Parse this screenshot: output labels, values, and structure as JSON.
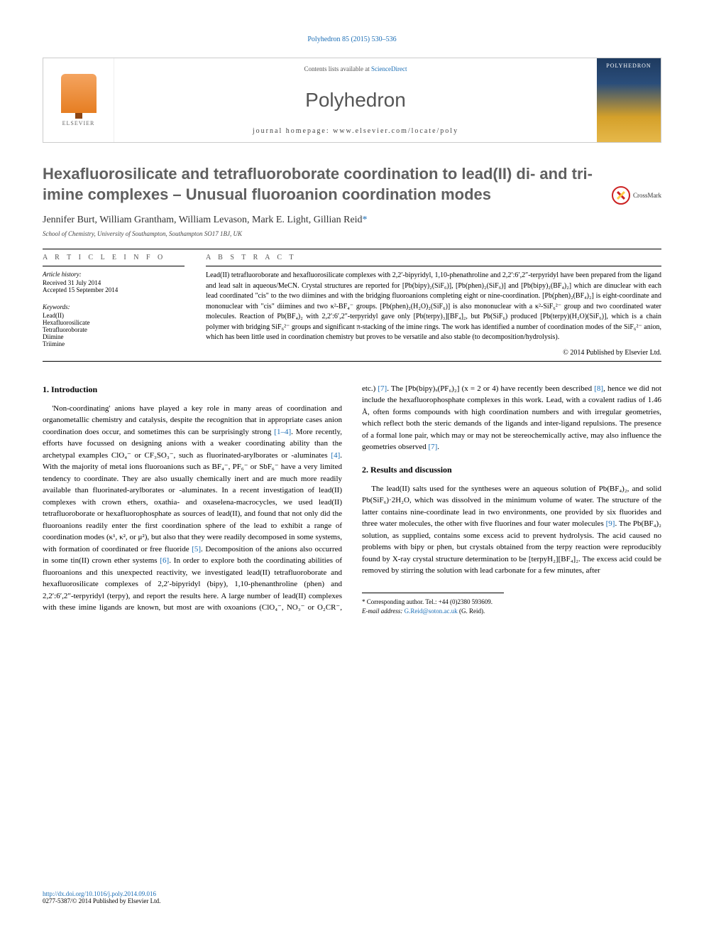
{
  "citation": "Polyhedron 85 (2015) 530–536",
  "banner": {
    "publisher_label": "ELSEVIER",
    "contents_prefix": "Contents lists available at ",
    "contents_link": "ScienceDirect",
    "journal_name": "Polyhedron",
    "homepage_label": "journal homepage: www.elsevier.com/locate/poly",
    "cover_title": "POLYHEDRON"
  },
  "crossmark_label": "CrossMark",
  "title": "Hexafluorosilicate and tetrafluoroborate coordination to lead(II) di- and tri-imine complexes – Unusual fluoroanion coordination modes",
  "authors": "Jennifer Burt, William Grantham, William Levason, Mark E. Light, Gillian Reid",
  "author_star": "*",
  "affiliation": "School of Chemistry, University of Southampton, Southampton SO17 1BJ, UK",
  "info_label": "A R T I C L E   I N F O",
  "abstract_label": "A B S T R A C T",
  "history": {
    "head": "Article history:",
    "received": "Received 31 July 2014",
    "accepted": "Accepted 15 September 2014"
  },
  "keywords": {
    "head": "Keywords:",
    "items": [
      "Lead(II)",
      "Hexafluorosilicate",
      "Tetrafluoroborate",
      "Diimine",
      "Triimine"
    ]
  },
  "abstract_html": "Lead(II) tetrafluoroborate and hexafluorosilicate complexes with 2,2′-bipyridyl, 1,10-phenathroline and 2,2′:6′,2″-terpyridyl have been prepared from the ligand and lead salt in aqueous/MeCN. Crystal structures are reported for [Pb(bipy)₂(SiF₆)], [Pb(phen)₂(SiF₆)] and [Pb(bipy)₂(BF₄)₂] which are dinuclear with each lead coordinated \"cis\" to the two diimines and with the bridging fluoroanions completing eight or nine-coordination. [Pb(phen)₂(BF₄)₂] is eight-coordinate and mononuclear with \"cis\" diimines and two κ²-BF₄⁻ groups. [Pb(phen)₂(H₂O)₂(SiF₆)] is also mononuclear with a κ²-SiF₆²⁻ group and two coordinated water molecules. Reaction of Pb(BF₄)₂ with 2,2′:6′,2″-terpyridyl gave only [Pb(terpy)₃][BF₄]₂, but Pb(SiF₆) produced [Pb(terpy)(H₂O)(SiF₆)], which is a chain polymer with bridging SiF₆²⁻ groups and significant π-stacking of the imine rings. The work has identified a number of coordination modes of the SiF₆²⁻ anion, which has been little used in coordination chemistry but proves to be versatile and also stable (to decomposition/hydrolysis).",
  "copyright": "© 2014 Published by Elsevier Ltd.",
  "intro": {
    "heading": "1. Introduction",
    "p1a": "'Non-coordinating' anions have played a key role in many areas of coordination and organometallic chemistry and catalysis, despite the recognition that in appropriate cases anion coordination does occur, and sometimes this can be surprisingly strong ",
    "ref1": "[1–4]",
    "p1b": ". More recently, efforts have focussed on designing anions with a weaker coordinating ability than the archetypal examples ClO₄⁻ or CF₃SO₃⁻, such as fluorinated-arylborates or -aluminates ",
    "ref2": "[4]",
    "p1c": ". With the majority of metal ions fluoroanions such as BF₄⁻, PF₆⁻ or SbF₆⁻ have a very limited tendency to coordinate. They are also usually chemically inert and are much more readily available than fluorinated-arylborates or -aluminates. In a recent investigation of lead(II) complexes with crown ethers, oxathia- and oxaselena-macrocycles, we used lead(II) tetrafluoroborate or hexafluorophosphate as sources of lead(II), and found that not only did the fluoroanions readily enter the first coordination sphere of the lead to exhibit a range of coordination modes (κ¹, κ², or μ²), but also that they were readily decomposed in some systems, with formation of coordinated or free fluoride ",
    "ref3": "[5]",
    "p1d": ". Decomposition of the anions also occurred in some tin(II) crown ether systems ",
    "ref4": "[6]",
    "p1e": ". In order to explore both the coordinating abilities of fluoroanions and this unexpected reactivity, we investigated lead(II) ",
    "p2a": "tetrafluoroborate and hexafluorosilicate complexes of 2,2′-bipyridyl (bipy), 1,10-phenanthroline (phen) and 2,2′:6′,2″-terpyridyl (terpy), and report the results here. A large number of lead(II) complexes with these imine ligands are known, but most are with oxoanions (ClO₄⁻, NO₃⁻ or O₂CR⁻, etc.) ",
    "ref5": "[7]",
    "p2b": ". The [Pb(bipy)ₓ(PF₆)₂] (x = 2 or 4) have recently been described ",
    "ref6": "[8]",
    "p2c": ", hence we did not include the hexafluorophosphate complexes in this work. Lead, with a covalent radius of 1.46 Å, often forms compounds with high coordination numbers and with irregular geometries, which reflect both the steric demands of the ligands and inter-ligand repulsions. The presence of a formal lone pair, which may or may not be stereochemically active, may also influence the geometries observed ",
    "ref7": "[7]",
    "p2d": "."
  },
  "results": {
    "heading": "2. Results and discussion",
    "p1a": "The lead(II) salts used for the syntheses were an aqueous solution of Pb(BF₄)₂, and solid Pb(SiF₆)·2H₂O, which was dissolved in the minimum volume of water. The structure of the latter contains nine-coordinate lead in two environments, one provided by six fluorides and three water molecules, the other with five fluorines and four water molecules ",
    "ref1": "[9]",
    "p1b": ". The Pb(BF₄)₂ solution, as supplied, contains some excess acid to prevent hydrolysis. The acid caused no problems with bipy or phen, but crystals obtained from the terpy reaction were reproducibly found by X-ray crystal structure determination to be [terpyH₂][BF₄]₂. The excess acid could be removed by stirring the solution with lead carbonate for a few minutes, after"
  },
  "corresp": {
    "label": "* Corresponding author. Tel.: +44 (0)2380 593609.",
    "email_prefix": "E-mail address: ",
    "email": "G.Reid@soton.ac.uk",
    "email_suffix": " (G. Reid)."
  },
  "doi": {
    "url": "http://dx.doi.org/10.1016/j.poly.2014.09.016",
    "issn": "0277-5387/© 2014 Published by Elsevier Ltd."
  },
  "colors": {
    "link": "#1a6db5",
    "text": "#000000",
    "heading_grey": "#606060",
    "banner_border": "#cccccc"
  }
}
